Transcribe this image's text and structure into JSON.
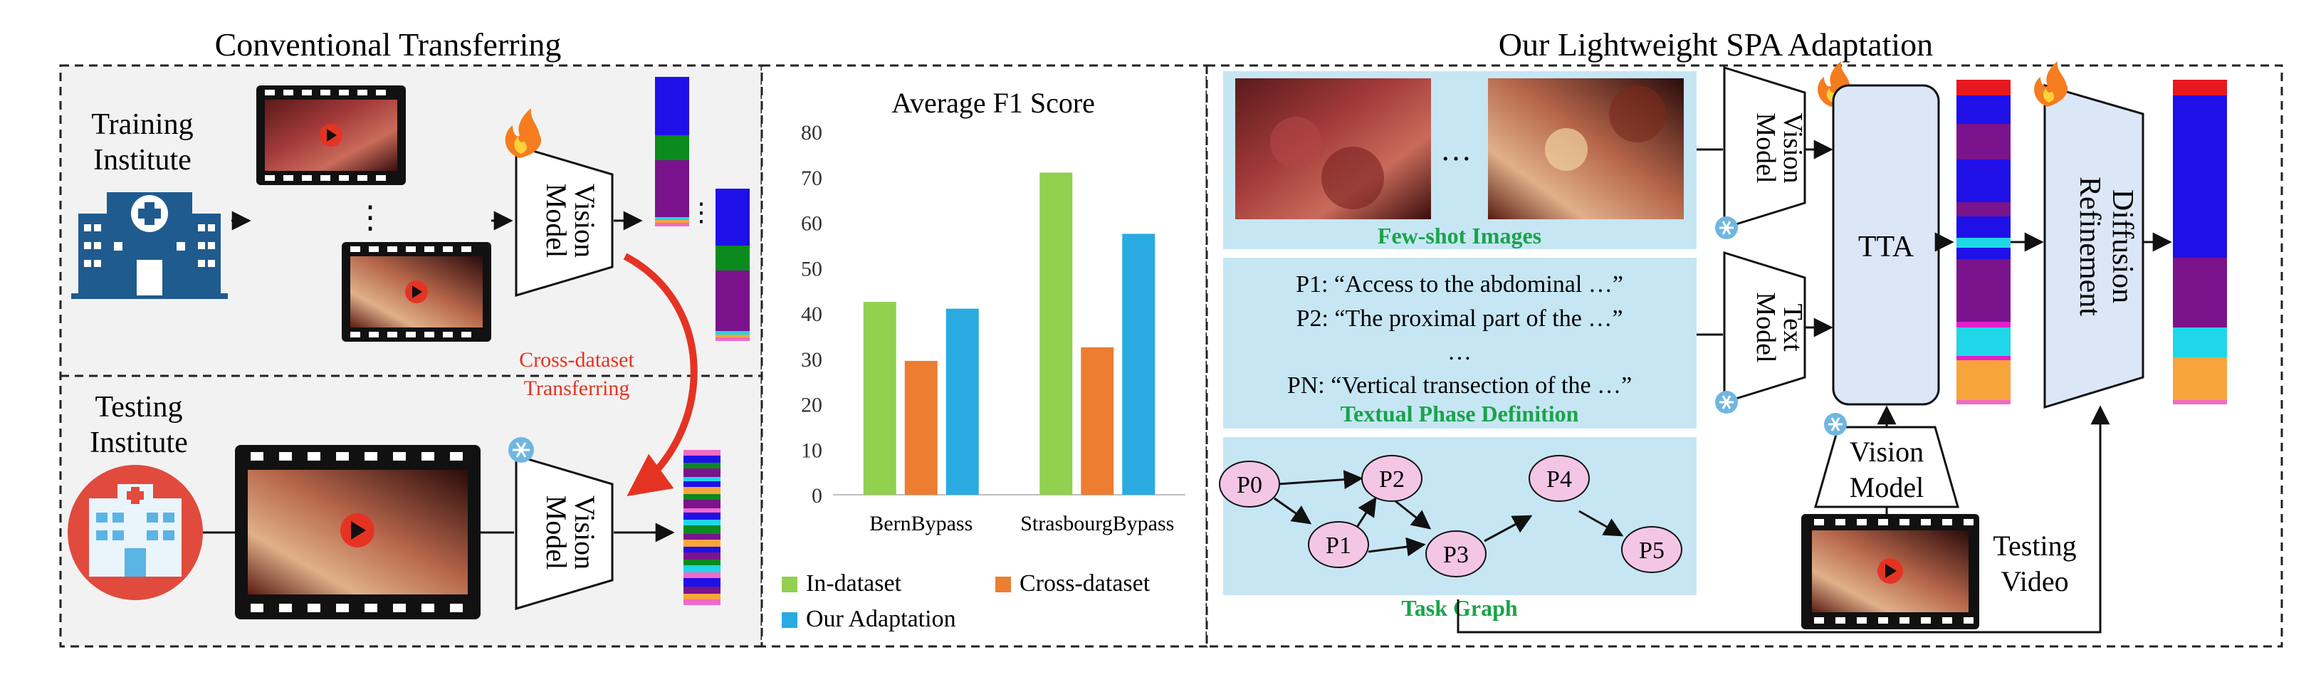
{
  "titles": {
    "left": "Conventional Transferring",
    "right": "Our Lightweight SPA Adaptation"
  },
  "left_panel": {
    "training_line1": "Training",
    "training_line2": "Institute",
    "testing_line1": "Testing",
    "testing_line2": "Institute",
    "vision_line1": "Vision",
    "vision_line2": "Model",
    "cross_line1": "Cross-dataset",
    "cross_line2": "Transferring",
    "dots_vertical": "⋮"
  },
  "chart_data": {
    "type": "bar",
    "title": "Average F1 Score",
    "categories": [
      "BernBypass",
      "StrasbourgBypass"
    ],
    "series": [
      {
        "name": "In-dataset",
        "values": [
          42.5,
          71
        ],
        "color": "#92d050"
      },
      {
        "name": "Cross-dataset",
        "values": [
          29.5,
          32.5
        ],
        "color": "#ed7d31"
      },
      {
        "name": "Our Adaptation",
        "values": [
          41,
          57.5
        ],
        "color": "#29abe2"
      }
    ],
    "ylim": [
      0,
      80
    ],
    "yticks": [
      "0",
      "10",
      "20",
      "30",
      "40",
      "50",
      "60",
      "70",
      "80"
    ],
    "grid": false,
    "legend": "bottom"
  },
  "right_panel": {
    "ellipsis": "…",
    "few_shot_label": "Few-shot Images",
    "prompts": [
      "P1: “Access to the abdominal …”",
      "P2: “The proximal part of the …”",
      "…",
      "PN: “Vertical transection of the …”"
    ],
    "textual_label": "Textual Phase Definition",
    "task_graph_label": "Task Graph",
    "nodes": [
      "P0",
      "P1",
      "P2",
      "P3",
      "P4",
      "P5"
    ],
    "vision_line1": "Vision",
    "vision_line2": "Model",
    "text_line1": "Text",
    "text_line2": "Model",
    "tta": "TTA",
    "diff_line1": "Diffusion",
    "diff_line2": "Refinement",
    "testing_video_line1": "Testing",
    "testing_video_line2": "Video"
  },
  "colors": {
    "accent_green": "#1aa34a",
    "arrow_red": "#e53323",
    "panel_blue": "#c6e6f4",
    "tta_fill": "#dbe7f7",
    "node_fill": "#f4c6e6",
    "hospital_blue": "#1f5b8f",
    "hospital_red": "#e04b3d"
  }
}
